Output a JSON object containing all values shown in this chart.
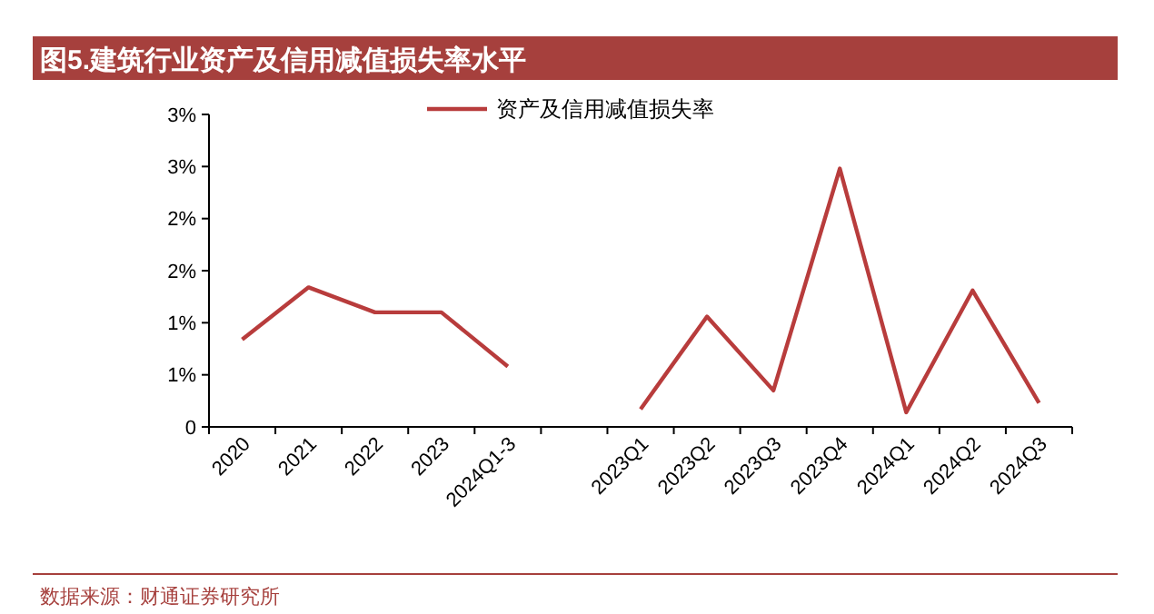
{
  "chart_data": {
    "type": "line",
    "title": "图5.建筑行业资产及信用减值损失率水平",
    "categories": [
      "2020",
      "2021",
      "2022",
      "2023",
      "2024Q1-3",
      null,
      "2023Q1",
      "2023Q2",
      "2023Q3",
      "2023Q4",
      "2024Q1",
      "2024Q2",
      "2024Q3"
    ],
    "series": [
      {
        "name": "资产及信用减值损失率",
        "color": "#b83c3c",
        "values": [
          0.84,
          1.34,
          1.1,
          1.1,
          0.58,
          null,
          0.17,
          1.06,
          0.35,
          2.48,
          0.14,
          1.31,
          0.23
        ]
      }
    ],
    "ylim": [
      0,
      3
    ],
    "yticks": [
      0,
      {
        "value": 0.5,
        "label": "1%"
      },
      {
        "value": 1,
        "label": "1%"
      },
      {
        "value": 1.5,
        "label": "2%"
      },
      {
        "value": 2,
        "label": "2%"
      },
      {
        "value": 2.5,
        "label": "3%"
      },
      {
        "value": 3,
        "label": "3%"
      }
    ],
    "grid": false,
    "legend": "top",
    "marker": "none",
    "line_style": "solid",
    "annotations": [
      "数据来源：财通证券研究所"
    ]
  }
}
